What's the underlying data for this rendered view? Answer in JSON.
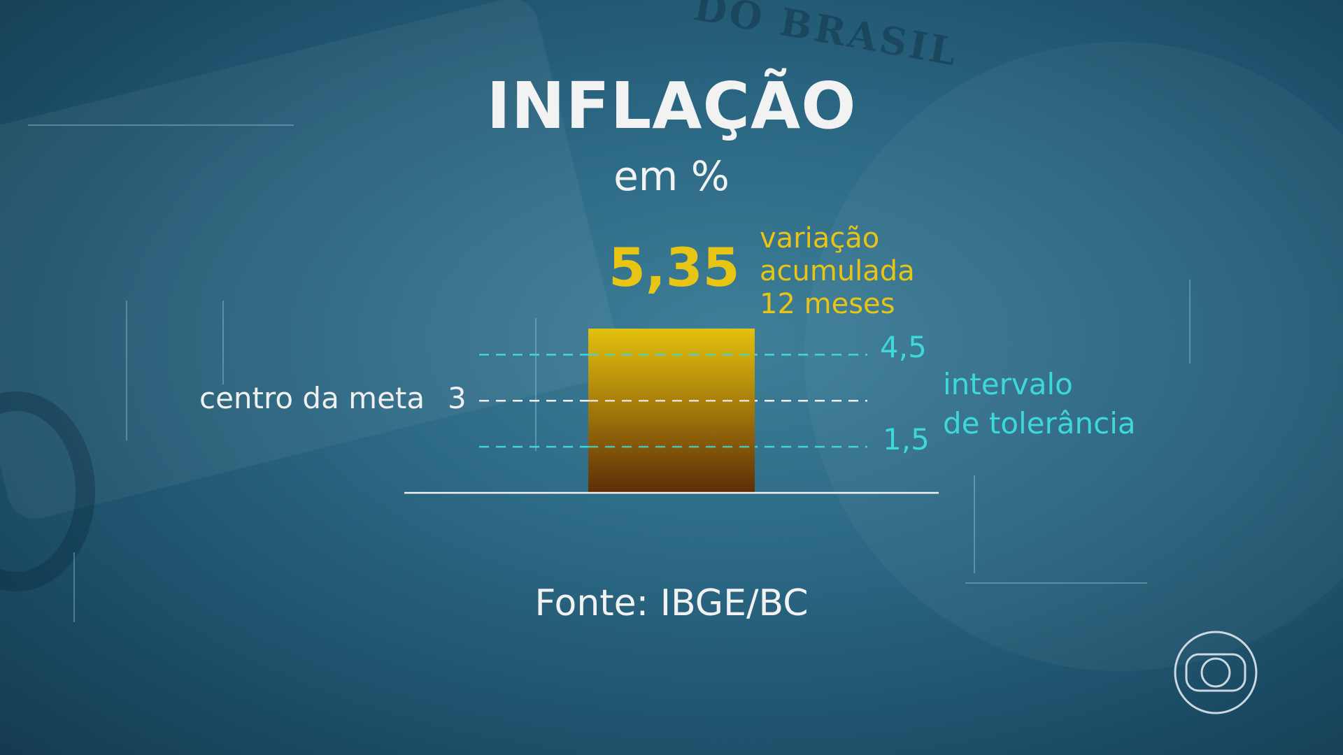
{
  "chart_data": {
    "type": "bar",
    "title": "INFLAÇÃO",
    "subtitle": "em %",
    "categories": [
      ""
    ],
    "values": [
      5.35
    ],
    "value_label": "5,35",
    "value_description": [
      "variação",
      "acumulada",
      "12 meses"
    ],
    "reference_lines": [
      {
        "value": 4.5,
        "label": "4,5",
        "style": "dashed",
        "color": "#3fd8d8"
      },
      {
        "value": 3,
        "label": "3",
        "style": "dashed",
        "color": "#f0f0f0"
      },
      {
        "value": 1.5,
        "label": "1,5",
        "style": "dashed",
        "color": "#3fd8d8"
      }
    ],
    "center_label": "centro da meta",
    "tolerance_label": [
      "intervalo",
      "de tolerância"
    ],
    "ylim": [
      0,
      5.35
    ],
    "grid": false,
    "bar_color_top": "#e3c10d",
    "bar_color_bottom": "#5e2d08",
    "source": "Fonte: IBGE/BC"
  },
  "background_watermark": "DO BRASIL",
  "logo": "globo-icon"
}
